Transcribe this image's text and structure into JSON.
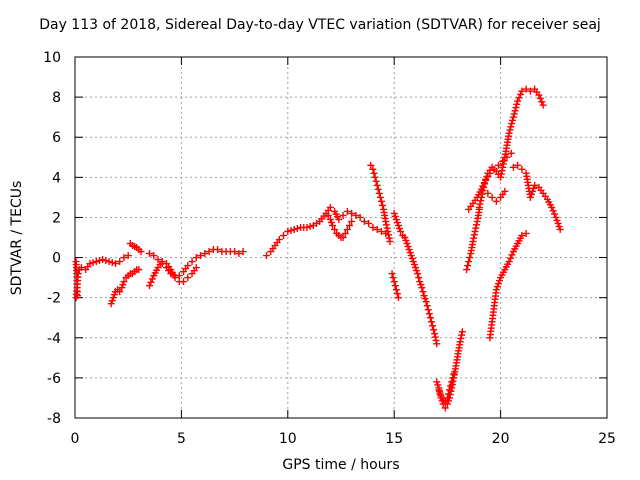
{
  "chart_data": {
    "type": "scatter",
    "title": "Day 113 of 2018, Sidereal Day-to-day VTEC variation (SDTVAR) for receiver seaj",
    "xlabel": "GPS time / hours",
    "ylabel": "SDTVAR / TECUs",
    "xlim": [
      0,
      25
    ],
    "ylim": [
      -8,
      10
    ],
    "xticks": [
      "0",
      "5",
      "10",
      "15",
      "20",
      "25"
    ],
    "yticks": [
      "-8",
      "-6",
      "-4",
      "-2",
      "0",
      "2",
      "4",
      "6",
      "8",
      "10"
    ],
    "grid": true,
    "marker": "+",
    "color": "#ff0000",
    "series": [
      {
        "x": [
          0.05,
          0.1,
          0.15,
          0.2,
          0.3,
          0.5,
          0.7,
          1.0,
          1.3,
          1.6,
          1.9,
          2.1,
          2.3,
          2.5
        ],
        "y": [
          -2.0,
          -1.5,
          -0.8,
          -0.6,
          -0.5,
          -0.6,
          -0.3,
          -0.2,
          -0.1,
          -0.2,
          -0.3,
          -0.2,
          0.0,
          0.1
        ]
      },
      {
        "x": [
          0.05,
          0.08,
          0.1,
          0.12
        ],
        "y": [
          -0.2,
          -0.8,
          -1.5,
          -1.9
        ]
      },
      {
        "x": [
          1.7,
          1.8,
          1.9,
          2.0,
          2.1,
          2.2,
          2.3,
          2.4,
          2.5,
          2.6,
          2.7,
          2.8,
          2.9,
          3.0
        ],
        "y": [
          -2.3,
          -2.0,
          -1.7,
          -1.6,
          -1.7,
          -1.5,
          -1.2,
          -1.0,
          -0.9,
          -0.8,
          -0.8,
          -0.7,
          -0.6,
          -0.6
        ]
      },
      {
        "x": [
          2.6,
          2.7,
          2.8,
          2.9,
          3.0,
          3.1
        ],
        "y": [
          0.7,
          0.6,
          0.55,
          0.5,
          0.4,
          0.3
        ]
      },
      {
        "x": [
          3.5,
          3.7,
          3.9,
          4.1,
          4.3,
          4.5,
          4.7,
          4.9,
          5.1,
          5.3,
          5.5,
          5.7
        ],
        "y": [
          -1.4,
          -0.9,
          -0.5,
          -0.2,
          -0.3,
          -0.6,
          -1.0,
          -1.2,
          -1.2,
          -1.0,
          -0.8,
          -0.5
        ]
      },
      {
        "x": [
          3.5,
          3.7,
          3.9,
          4.1,
          4.3,
          4.5,
          4.7,
          4.9,
          5.1,
          5.3,
          5.5,
          5.7,
          5.9,
          6.1,
          6.3,
          6.5,
          6.7,
          6.9,
          7.1,
          7.3,
          7.5,
          7.7,
          7.9
        ],
        "y": [
          0.2,
          0.1,
          -0.1,
          -0.3,
          -0.5,
          -0.8,
          -0.9,
          -0.9,
          -0.7,
          -0.4,
          -0.2,
          0.0,
          0.1,
          0.2,
          0.3,
          0.4,
          0.4,
          0.3,
          0.3,
          0.3,
          0.3,
          0.2,
          0.3
        ]
      },
      {
        "x": [
          9.0,
          9.2,
          9.4,
          9.6,
          9.8,
          10.0,
          10.3,
          10.6,
          10.9,
          11.2,
          11.5,
          11.8,
          12.0,
          12.2,
          12.4,
          12.6,
          12.8,
          13.0,
          13.2,
          13.4,
          13.6,
          13.8,
          14.0,
          14.2,
          14.4,
          14.6
        ],
        "y": [
          0.1,
          0.3,
          0.6,
          0.9,
          1.1,
          1.3,
          1.4,
          1.5,
          1.5,
          1.6,
          1.8,
          2.2,
          2.5,
          2.3,
          1.9,
          2.1,
          2.3,
          2.2,
          2.1,
          2.0,
          1.8,
          1.7,
          1.5,
          1.4,
          1.3,
          1.2
        ]
      },
      {
        "x": [
          11.9,
          12.0,
          12.1,
          12.2,
          12.3,
          12.4,
          12.5,
          12.6,
          12.7,
          12.8,
          12.9,
          13.0
        ],
        "y": [
          2.1,
          1.9,
          1.6,
          1.4,
          1.2,
          1.1,
          1.0,
          1.0,
          1.2,
          1.4,
          1.6,
          1.8
        ]
      },
      {
        "x": [
          13.9,
          14.0,
          14.1,
          14.2,
          14.3,
          14.4,
          14.5,
          14.6,
          14.7,
          14.8
        ],
        "y": [
          4.6,
          4.4,
          4.0,
          3.6,
          3.2,
          2.8,
          2.4,
          1.8,
          1.3,
          0.8
        ]
      },
      {
        "x": [
          15.0,
          15.1,
          15.2,
          15.3,
          15.4,
          15.5,
          15.6,
          15.7,
          15.8,
          15.9,
          16.0,
          16.1,
          16.2,
          16.3,
          16.4,
          16.5,
          16.6,
          16.7,
          16.8,
          16.9,
          17.0
        ],
        "y": [
          2.2,
          1.9,
          1.6,
          1.3,
          1.1,
          1.0,
          0.7,
          0.4,
          0.1,
          -0.2,
          -0.5,
          -0.8,
          -1.2,
          -1.5,
          -1.9,
          -2.2,
          -2.6,
          -3.0,
          -3.4,
          -3.8,
          -4.3
        ]
      },
      {
        "x": [
          14.9,
          15.0,
          15.1,
          15.2
        ],
        "y": [
          -0.8,
          -1.2,
          -1.6,
          -2.0
        ]
      },
      {
        "x": [
          17.0,
          17.1,
          17.2,
          17.3,
          17.4,
          17.5,
          17.6,
          17.7,
          17.8,
          17.9,
          18.0,
          18.1,
          18.2
        ],
        "y": [
          -6.2,
          -6.5,
          -7.0,
          -7.3,
          -7.5,
          -7.3,
          -7.0,
          -6.5,
          -6.0,
          -5.4,
          -4.8,
          -4.2,
          -3.7
        ]
      },
      {
        "x": [
          17.1,
          17.2,
          17.3,
          17.4,
          17.5,
          17.6,
          17.7,
          17.8
        ],
        "y": [
          -6.6,
          -6.9,
          -7.1,
          -7.2,
          -7.0,
          -6.6,
          -6.2,
          -5.8
        ]
      },
      {
        "x": [
          18.4,
          18.5,
          18.6,
          18.7,
          18.8,
          18.9,
          19.0
        ],
        "y": [
          -0.6,
          -0.2,
          0.2,
          0.8,
          1.3,
          1.8,
          2.4
        ]
      },
      {
        "x": [
          18.5,
          18.7,
          18.9,
          19.1,
          19.3,
          19.5,
          19.7,
          19.9,
          20.1,
          20.3,
          20.5
        ],
        "y": [
          2.4,
          2.7,
          3.0,
          3.4,
          3.9,
          4.2,
          4.4,
          4.6,
          4.8,
          5.0,
          5.2
        ]
      },
      {
        "x": [
          19.0,
          19.2,
          19.4,
          19.6,
          19.8,
          20.0,
          20.2,
          20.4,
          20.6,
          20.8,
          21.0,
          21.2,
          21.4,
          21.6,
          21.8,
          22.0
        ],
        "y": [
          2.5,
          3.5,
          4.2,
          4.5,
          4.3,
          4.0,
          5.0,
          6.2,
          7.0,
          7.8,
          8.3,
          8.4,
          8.3,
          8.4,
          8.1,
          7.6
        ]
      },
      {
        "x": [
          19.4,
          19.6,
          19.8,
          20.0,
          20.2
        ],
        "y": [
          3.2,
          3.0,
          2.8,
          3.0,
          3.3
        ]
      },
      {
        "x": [
          20.6,
          20.8,
          21.0,
          21.2,
          21.4,
          21.6,
          21.8,
          22.0,
          22.2,
          22.4,
          22.6,
          22.8
        ],
        "y": [
          4.5,
          4.6,
          4.4,
          4.2,
          3.0,
          3.6,
          3.5,
          3.2,
          2.9,
          2.5,
          2.0,
          1.4
        ]
      },
      {
        "x": [
          19.5,
          19.6,
          19.7,
          19.8,
          20.0,
          20.2,
          20.4,
          20.6,
          20.8,
          21.0,
          21.2
        ],
        "y": [
          -4.0,
          -3.2,
          -2.4,
          -1.6,
          -1.0,
          -0.6,
          -0.2,
          0.3,
          0.7,
          1.1,
          1.2
        ]
      }
    ]
  }
}
